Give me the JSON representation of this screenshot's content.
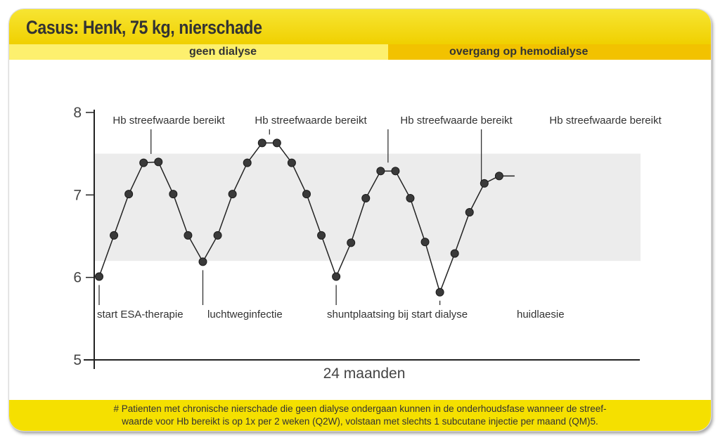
{
  "header": {
    "title": "Casus: Henk, 75 kg, nierschade"
  },
  "phases": {
    "left": "geen dialyse",
    "right": "overgang op hemodialyse"
  },
  "footer": {
    "line1": "# Patienten met chronische nierschade die geen dialyse ondergaan kunnen in de onderhoudsfase wanneer de streef-",
    "line2": "waarde voor Hb bereikt is op 1x per 2 weken (Q2W), volstaan met slechts 1 subcutane injectie per maand (QM)5."
  },
  "colors": {
    "header": "#f0d000",
    "band_left": "#fdf06e",
    "band_right": "#f2c200",
    "target_band": "#ececec",
    "points": "#3a3a3a"
  },
  "chart_data": {
    "type": "line",
    "xlabel": "24 maanden",
    "ylabel": "",
    "ylim": [
      5,
      8
    ],
    "yticks": [
      5,
      6,
      7,
      8
    ],
    "target_band": [
      6.2,
      7.5
    ],
    "series": [
      {
        "values": [
          6.01,
          6.51,
          7.01,
          7.39,
          7.4,
          7.01,
          6.51,
          6.19,
          6.51,
          7.01,
          7.39,
          7.63,
          7.63,
          7.39,
          7.01,
          6.51,
          6.01,
          6.42,
          6.96,
          7.29,
          7.29,
          6.96,
          6.43,
          5.82,
          6.29,
          6.79,
          7.14,
          7.23
        ]
      }
    ],
    "annotations": {
      "above": [
        "Hb streefwaarde bereikt",
        "Hb streefwaarde bereikt",
        "Hb streefwaarde bereikt",
        "Hb streefwaarde bereikt"
      ],
      "below": [
        "start ESA-therapie",
        "luchtweginfectie",
        "shuntplaatsing bij start dialyse",
        "huidlaesie"
      ]
    }
  }
}
